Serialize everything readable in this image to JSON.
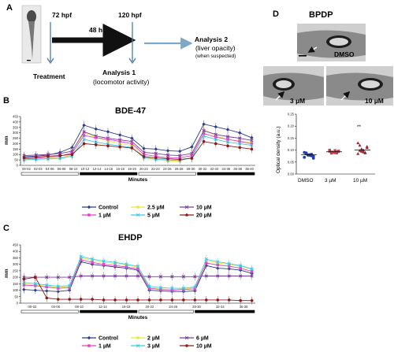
{
  "panels": {
    "A": {
      "letter": "A",
      "hpf_start": "72 hpf",
      "duration": "48 h",
      "hpf_end": "120 hpf",
      "treatment": "Treatment",
      "analysis1_title": "Analysis 1",
      "analysis1_sub": "(locomotor activity)",
      "analysis2_title": "Analysis 2",
      "analysis2_sub": "(liver opacity)",
      "analysis2_note": "(when suspected)"
    },
    "D": {
      "letter": "D",
      "title": "BPDP",
      "img_labels": [
        "DMSO",
        "3 µM",
        "10 µM"
      ],
      "ylabel": "Optical density (a.u.)",
      "categories": [
        "DMSO",
        "3 µM",
        "10 µM"
      ],
      "yticks": [
        "0.00",
        "0.05",
        "0.10",
        "0.15",
        "0.20",
        "0.25"
      ],
      "sig": "**",
      "colors": [
        "#1f3fa8",
        "#c0404c",
        "#a02030"
      ]
    },
    "B": {
      "letter": "B",
      "title": "BDE-47"
    },
    "C": {
      "letter": "C",
      "title": "EHDP"
    }
  },
  "chart_data": [
    {
      "id": "B",
      "type": "line",
      "title": "BDE-47",
      "ylabel": "mm",
      "xlabel": "Minutes",
      "ylim": [
        0,
        450
      ],
      "yticks": [
        0,
        50,
        100,
        150,
        200,
        250,
        300,
        350,
        400,
        450
      ],
      "xticks": [
        "00-02",
        "02-04",
        "04-06",
        "06-08",
        "08-10",
        "10-12",
        "12-14",
        "14-16",
        "16-18",
        "18-20",
        "20-22",
        "22-24",
        "24-26",
        "26-28",
        "28-30",
        "30-32",
        "32-34",
        "34-36",
        "36-38",
        "38-40"
      ],
      "series": [
        {
          "name": "Control",
          "color": "#2b3b8c",
          "marker": "diamond",
          "values": [
            80,
            85,
            95,
            120,
            165,
            370,
            335,
            310,
            280,
            250,
            155,
            150,
            135,
            130,
            170,
            380,
            355,
            330,
            300,
            255
          ]
        },
        {
          "name": "2.5 µM",
          "color": "#e8e840",
          "marker": "square",
          "values": [
            55,
            60,
            65,
            70,
            95,
            300,
            260,
            225,
            200,
            185,
            80,
            60,
            40,
            40,
            75,
            330,
            270,
            240,
            225,
            205
          ]
        },
        {
          "name": "10 µM",
          "color": "#7a3d9a",
          "marker": "x",
          "values": [
            90,
            95,
            100,
            110,
            130,
            310,
            270,
            250,
            235,
            220,
            120,
            110,
            95,
            90,
            110,
            320,
            285,
            265,
            250,
            230
          ]
        },
        {
          "name": "1 µM",
          "color": "#e040c8",
          "marker": "square",
          "values": [
            60,
            65,
            75,
            85,
            115,
            275,
            255,
            240,
            220,
            200,
            100,
            85,
            70,
            70,
            90,
            295,
            260,
            240,
            220,
            200
          ]
        },
        {
          "name": "5 µM",
          "color": "#40c8e8",
          "marker": "x",
          "values": [
            50,
            55,
            60,
            65,
            85,
            240,
            215,
            195,
            180,
            165,
            70,
            55,
            50,
            45,
            70,
            270,
            240,
            215,
            200,
            185
          ]
        },
        {
          "name": "20 µM",
          "color": "#8b1a1a",
          "marker": "circle",
          "values": [
            70,
            75,
            85,
            90,
            100,
            200,
            190,
            180,
            170,
            160,
            80,
            70,
            60,
            55,
            65,
            220,
            200,
            180,
            165,
            150
          ]
        }
      ]
    },
    {
      "id": "C",
      "type": "line",
      "title": "EHDP",
      "ylabel": "mm",
      "xlabel": "Minutes",
      "ylim": [
        0,
        450
      ],
      "yticks": [
        0,
        50,
        100,
        150,
        200,
        250,
        300,
        350,
        400,
        450
      ],
      "xticks": [
        "00-02",
        "04-06",
        "08-10",
        "12-14",
        "16-18",
        "20-22",
        "24-26",
        "28-30",
        "32-34",
        "36-38"
      ],
      "series": [
        {
          "name": "Control",
          "color": "#2b3b8c",
          "marker": "diamond",
          "values": [
            105,
            100,
            95,
            90,
            100,
            320,
            300,
            290,
            280,
            270,
            255,
            100,
            95,
            90,
            90,
            95,
            290,
            270,
            265,
            255,
            230
          ]
        },
        {
          "name": "2 µM",
          "color": "#e8e840",
          "marker": "square",
          "values": [
            150,
            140,
            130,
            120,
            130,
            350,
            330,
            315,
            305,
            295,
            280,
            120,
            110,
            105,
            110,
            120,
            330,
            310,
            300,
            285,
            260
          ]
        },
        {
          "name": "6 µM",
          "color": "#7a3d9a",
          "marker": "x",
          "values": [
            200,
            200,
            200,
            200,
            200,
            210,
            210,
            210,
            210,
            210,
            210,
            205,
            205,
            205,
            205,
            205,
            210,
            210,
            210,
            210,
            210
          ]
        },
        {
          "name": "1 µM",
          "color": "#e040c8",
          "marker": "square",
          "values": [
            140,
            135,
            125,
            115,
            120,
            335,
            315,
            300,
            290,
            280,
            265,
            115,
            105,
            100,
            105,
            110,
            310,
            295,
            285,
            270,
            245
          ]
        },
        {
          "name": "3 µM",
          "color": "#40c8e8",
          "marker": "x",
          "values": [
            160,
            150,
            140,
            130,
            135,
            360,
            340,
            325,
            315,
            300,
            285,
            130,
            120,
            115,
            115,
            125,
            340,
            320,
            305,
            290,
            265
          ]
        },
        {
          "name": "10 µM",
          "color": "#8b1a1a",
          "marker": "circle",
          "values": [
            185,
            200,
            40,
            30,
            30,
            30,
            30,
            25,
            25,
            25,
            25,
            25,
            25,
            25,
            25,
            25,
            25,
            25,
            25,
            20,
            20
          ]
        }
      ]
    },
    {
      "id": "D",
      "type": "scatter",
      "title": "BPDP",
      "ylabel": "Optical density (a.u.)",
      "categories": [
        "DMSO",
        "3 µM",
        "10 µM"
      ],
      "ylim": [
        0,
        0.25
      ],
      "yticks": [
        0,
        0.05,
        0.1,
        0.15,
        0.2,
        0.25
      ],
      "series": [
        {
          "name": "DMSO",
          "color": "#1f3fa8",
          "values": [
            0.09,
            0.085,
            0.08,
            0.078,
            0.082,
            0.075,
            0.07,
            0.088,
            0.079,
            0.081,
            0.076,
            0.066
          ],
          "mean": 0.08
        },
        {
          "name": "3 µM",
          "color": "#c0404c",
          "values": [
            0.095,
            0.092,
            0.09,
            0.098,
            0.088,
            0.094,
            0.1,
            0.087,
            0.091,
            0.089,
            0.093,
            0.096
          ],
          "mean": 0.093
        },
        {
          "name": "10 µM",
          "color": "#a02030",
          "values": [
            0.13,
            0.12,
            0.095,
            0.1,
            0.09,
            0.11,
            0.085,
            0.098,
            0.105,
            0.092,
            0.088,
            0.115
          ],
          "mean": 0.1
        }
      ]
    }
  ]
}
